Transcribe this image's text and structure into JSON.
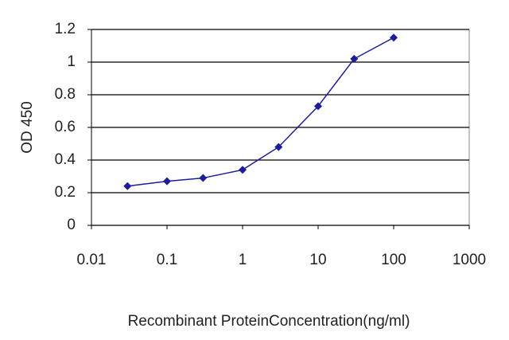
{
  "chart_data": {
    "type": "line",
    "x_label": "Recombinant ProteinConcentration(ng/ml)",
    "y_label": "OD 450",
    "x": [
      0.03,
      0.1,
      0.3,
      1,
      3,
      10,
      30,
      100
    ],
    "series": [
      {
        "name": "OD 450",
        "color": "#1c1c9e",
        "values": [
          0.24,
          0.27,
          0.29,
          0.34,
          0.48,
          0.73,
          1.02,
          1.15
        ]
      }
    ],
    "xlim": [
      0.01,
      1000
    ],
    "xticks": [
      0.01,
      0.1,
      1,
      10,
      100,
      1000
    ],
    "log_x": true,
    "ylim": [
      0,
      1.2
    ],
    "yticks": [
      0,
      0.2,
      0.4,
      0.6,
      0.8,
      1,
      1.2
    ],
    "grid": true
  }
}
